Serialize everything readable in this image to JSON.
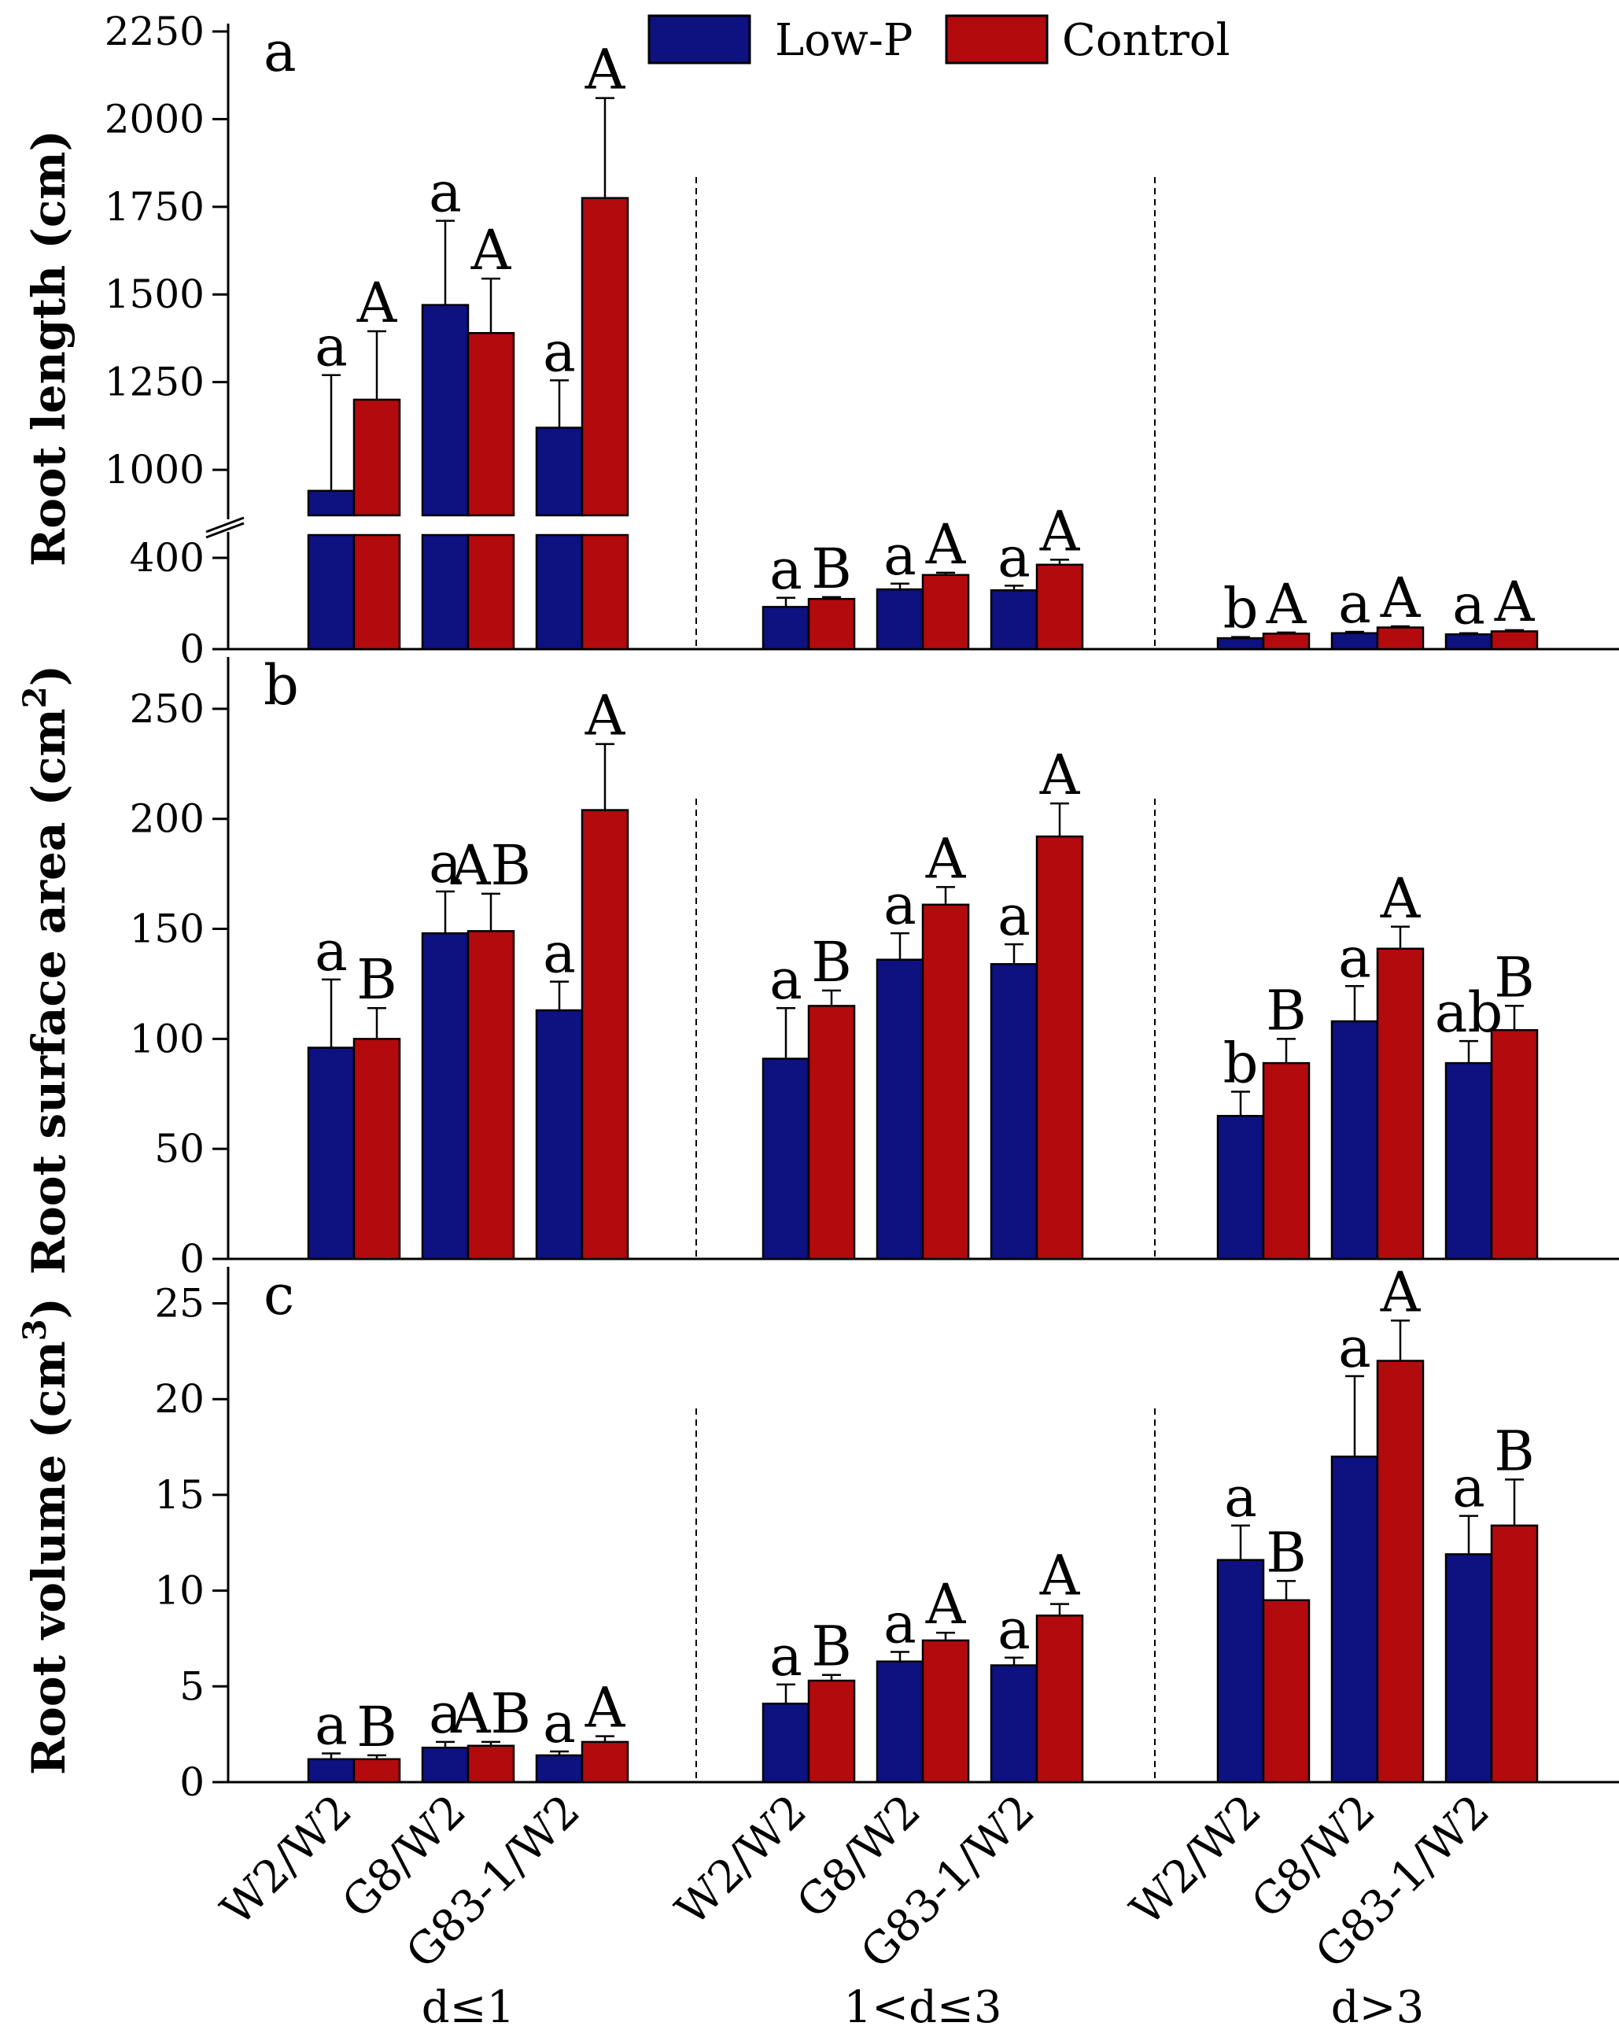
{
  "chart_data": {
    "type": "bar",
    "legend": [
      {
        "name": "Low-P",
        "color": "#0e1180"
      },
      {
        "name": "Control",
        "color": "#b30a0e"
      }
    ],
    "legend_position": "top-center",
    "groups": [
      "d≤1",
      "1<d≤3",
      "d>3"
    ],
    "categories": [
      "W2/W2",
      "G8/W2",
      "G83-1/W2"
    ],
    "panels": [
      {
        "letter": "a",
        "ylabel": "Root length (cm)",
        "axis_break": true,
        "lower_range": [
          0,
          500
        ],
        "upper_range": [
          870,
          2250
        ],
        "lower_ticks": [
          0,
          400
        ],
        "upper_ticks": [
          1000,
          1250,
          1500,
          1750,
          2000,
          2250
        ],
        "series": [
          {
            "name": "Low-P",
            "values": [
              [
                940,
                1470,
                1120
              ],
              [
                185,
                262,
                258
              ],
              [
                48,
                70,
                65
              ]
            ],
            "errors": [
              [
                330,
                240,
                135
              ],
              [
                40,
                25,
                20
              ],
              [
                5,
                6,
                5
              ]
            ],
            "letters": [
              [
                "a",
                "a",
                "a"
              ],
              [
                "a",
                "a",
                "a"
              ],
              [
                "b",
                "a",
                "a"
              ]
            ]
          },
          {
            "name": "Control",
            "values": [
              [
                1200,
                1390,
                1775
              ],
              [
                220,
                325,
                370
              ],
              [
                68,
                95,
                78
              ]
            ],
            "errors": [
              [
                195,
                155,
                285
              ],
              [
                8,
                10,
                22
              ],
              [
                5,
                5,
                5
              ]
            ],
            "letters": [
              [
                "A",
                "A",
                "A"
              ],
              [
                "B",
                "A",
                "A"
              ],
              [
                "A",
                "A",
                "A"
              ]
            ]
          }
        ]
      },
      {
        "letter": "b",
        "ylabel": "Root surface area (cm",
        "ylabel_sup": "2",
        "ylabel_end": ")",
        "ylim": [
          0,
          270
        ],
        "ticks": [
          0,
          50,
          100,
          150,
          200,
          250
        ],
        "series": [
          {
            "name": "Low-P",
            "values": [
              [
                96,
                148,
                113
              ],
              [
                91,
                136,
                134
              ],
              [
                65,
                108,
                89
              ]
            ],
            "errors": [
              [
                31,
                19,
                13
              ],
              [
                23,
                12,
                9
              ],
              [
                11,
                16,
                10
              ]
            ],
            "letters": [
              [
                "a",
                "a",
                "a"
              ],
              [
                "a",
                "a",
                "a"
              ],
              [
                "b",
                "a",
                "ab"
              ]
            ]
          },
          {
            "name": "Control",
            "values": [
              [
                100,
                149,
                204
              ],
              [
                115,
                161,
                192
              ],
              [
                89,
                141,
                104
              ]
            ],
            "errors": [
              [
                14,
                17,
                30
              ],
              [
                7,
                8,
                15
              ],
              [
                11,
                10,
                11
              ]
            ],
            "letters": [
              [
                "B",
                "AB",
                "A"
              ],
              [
                "B",
                "A",
                "A"
              ],
              [
                "B",
                "A",
                "B"
              ]
            ]
          }
        ]
      },
      {
        "letter": "c",
        "ylabel": "Root volume (cm",
        "ylabel_sup": "3",
        "ylabel_end": ")",
        "ylim": [
          0,
          26.5
        ],
        "ticks": [
          0,
          5,
          10,
          15,
          20,
          25
        ],
        "series": [
          {
            "name": "Low-P",
            "values": [
              [
                1.2,
                1.8,
                1.4
              ],
              [
                4.1,
                6.3,
                6.1
              ],
              [
                11.6,
                17.0,
                11.9
              ]
            ],
            "errors": [
              [
                0.3,
                0.3,
                0.2
              ],
              [
                1.0,
                0.5,
                0.4
              ],
              [
                1.8,
                4.2,
                2.0
              ]
            ],
            "letters": [
              [
                "a",
                "a",
                "a"
              ],
              [
                "a",
                "a",
                "a"
              ],
              [
                "a",
                "a",
                "a"
              ]
            ]
          },
          {
            "name": "Control",
            "values": [
              [
                1.2,
                1.9,
                2.1
              ],
              [
                5.3,
                7.4,
                8.7
              ],
              [
                9.5,
                22.0,
                13.4
              ]
            ],
            "errors": [
              [
                0.2,
                0.2,
                0.3
              ],
              [
                0.3,
                0.4,
                0.6
              ],
              [
                1.0,
                2.1,
                2.4
              ]
            ],
            "letters": [
              [
                "B",
                "AB",
                "A"
              ],
              [
                "B",
                "A",
                "A"
              ],
              [
                "B",
                "A",
                "B"
              ]
            ]
          }
        ]
      }
    ]
  }
}
